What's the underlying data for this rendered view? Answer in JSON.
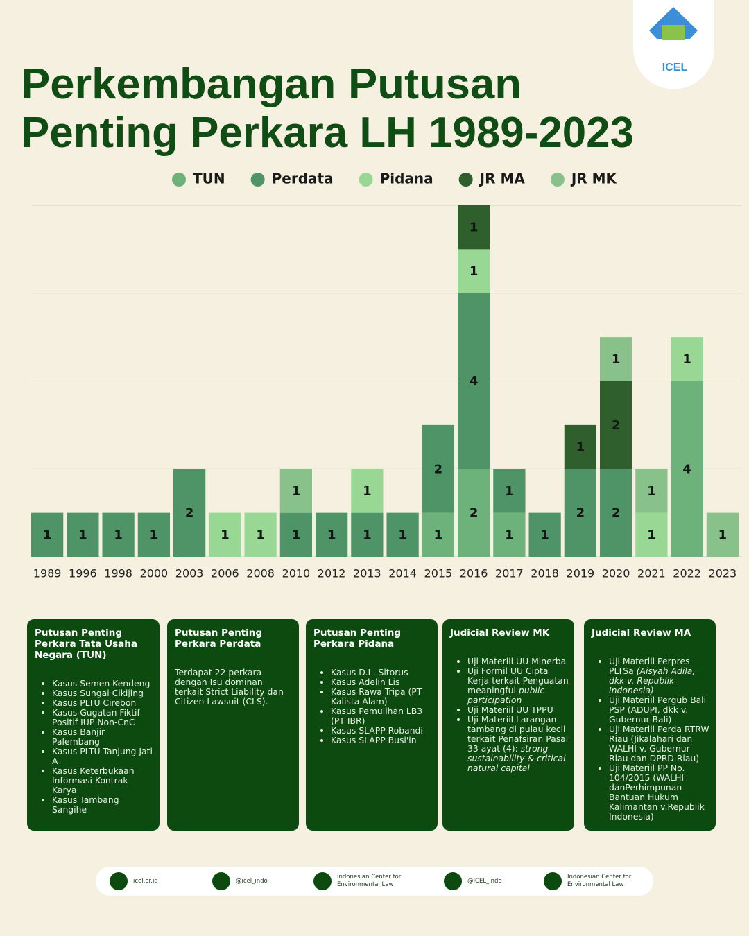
{
  "logo": {
    "text": "ICEL"
  },
  "chart_data": {
    "type": "stacked_bar",
    "title": "Perkembangan Putusan Penting Perkara LH 1989-2023",
    "categories": [
      "1989",
      "1996",
      "1998",
      "2000",
      "2003",
      "2006",
      "2008",
      "2010",
      "2012",
      "2013",
      "2014",
      "2015",
      "2016",
      "2017",
      "2018",
      "2019",
      "2020",
      "2021",
      "2022",
      "2023"
    ],
    "series": [
      {
        "name": "TUN",
        "color": "#6db27b",
        "values": [
          null,
          null,
          null,
          null,
          null,
          null,
          null,
          null,
          null,
          null,
          null,
          1,
          2,
          1,
          null,
          null,
          null,
          null,
          4,
          null
        ]
      },
      {
        "name": "Perdata",
        "color": "#4f9467",
        "values": [
          1,
          1,
          1,
          1,
          2,
          null,
          null,
          1,
          1,
          1,
          1,
          2,
          4,
          1,
          1,
          2,
          2,
          null,
          null,
          null
        ]
      },
      {
        "name": "Pidana",
        "color": "#99d795",
        "values": [
          null,
          null,
          null,
          null,
          null,
          1,
          1,
          null,
          null,
          1,
          null,
          null,
          1,
          null,
          null,
          null,
          null,
          1,
          1,
          null
        ]
      },
      {
        "name": "JR MA",
        "color": "#2f5f2d",
        "values": [
          null,
          null,
          null,
          null,
          null,
          null,
          null,
          null,
          null,
          null,
          null,
          null,
          1,
          null,
          null,
          1,
          2,
          null,
          null,
          null
        ]
      },
      {
        "name": "JR MK",
        "color": "#88c189",
        "values": [
          null,
          null,
          null,
          null,
          null,
          null,
          null,
          1,
          null,
          null,
          null,
          null,
          null,
          null,
          null,
          null,
          1,
          1,
          null,
          1
        ]
      }
    ],
    "ylim": [
      0,
      8
    ],
    "yticks": [
      0,
      2,
      4,
      6,
      8
    ],
    "grid": true,
    "legend": "top"
  },
  "panels": [
    {
      "title": "Putusan Penting Perkara Tata Usaha Negara (TUN)",
      "items": [
        "Kasus Semen Kendeng",
        "Kasus Sungai Cikijing",
        "Kasus PLTU Cirebon",
        "Kasus Gugatan Fiktif Positif IUP Non-CnC",
        "Kasus Banjir Palembang",
        "Kasus PLTU Tanjung Jati A",
        "Kasus Keterbukaan Informasi Kontrak Karya",
        "Kasus Tambang Sangihe"
      ]
    },
    {
      "title": "Putusan Penting Perkara Perdata",
      "text": "Terdapat 22 perkara dengan Isu dominan terkait Strict Liability dan Citizen Lawsuit (CLS)."
    },
    {
      "title": "Putusan Penting Perkara Pidana",
      "items": [
        "Kasus D.L. Sitorus",
        "Kasus Adelin Lis",
        "Kasus Rawa Tripa (PT Kalista Alam)",
        "Kasus Pemulihan LB3 (PT IBR)",
        "Kasus SLAPP Robandi",
        "Kasus SLAPP Busi'in"
      ]
    },
    {
      "title": "Judicial Review MK",
      "items": [
        [
          {
            "text": "Uji Materiil UU Minerba"
          }
        ],
        [
          {
            "text": "Uji Formil UU Cipta Kerja terkait Penguatan meaningful "
          },
          {
            "text": "public participation",
            "italic": true
          }
        ],
        [
          {
            "text": "Uji Materiil UU TPPU"
          }
        ],
        [
          {
            "text": "Uji Materiil Larangan tambang di pulau kecil terkait Penafsiran Pasal 33 ayat (4): "
          },
          {
            "text": "strong sustainability & critical natural capital",
            "italic": true
          }
        ]
      ]
    },
    {
      "title": "Judicial Review MA",
      "items": [
        [
          {
            "text": "Uji Materiil Perpres PLTSa "
          },
          {
            "text": "(Aisyah Adila, dkk v. Republik Indonesia)",
            "italic": true
          }
        ],
        [
          {
            "text": "Uji Materiil Pergub Bali PSP (ADUPI, dkk v. Gubernur Bali)"
          }
        ],
        [
          {
            "text": "Uji Materiil Perda RTRW Riau (Jikalahari dan WALHI v. Gubernur Riau dan DPRD Riau)"
          }
        ],
        [
          {
            "text": "Uji Materiil PP No. 104/2015 (WALHI danPerhimpunan Bantuan Hukum Kalimantan v.Republik Indonesia)"
          }
        ]
      ]
    }
  ],
  "footer": [
    {
      "text": "icel.or.id"
    },
    {
      "text": "@icel_indo"
    },
    {
      "text": "Indonesian Center for Environmental Law"
    },
    {
      "text": "@ICEL_indo"
    },
    {
      "text": "Indonesian Center for Environmental Law"
    }
  ]
}
